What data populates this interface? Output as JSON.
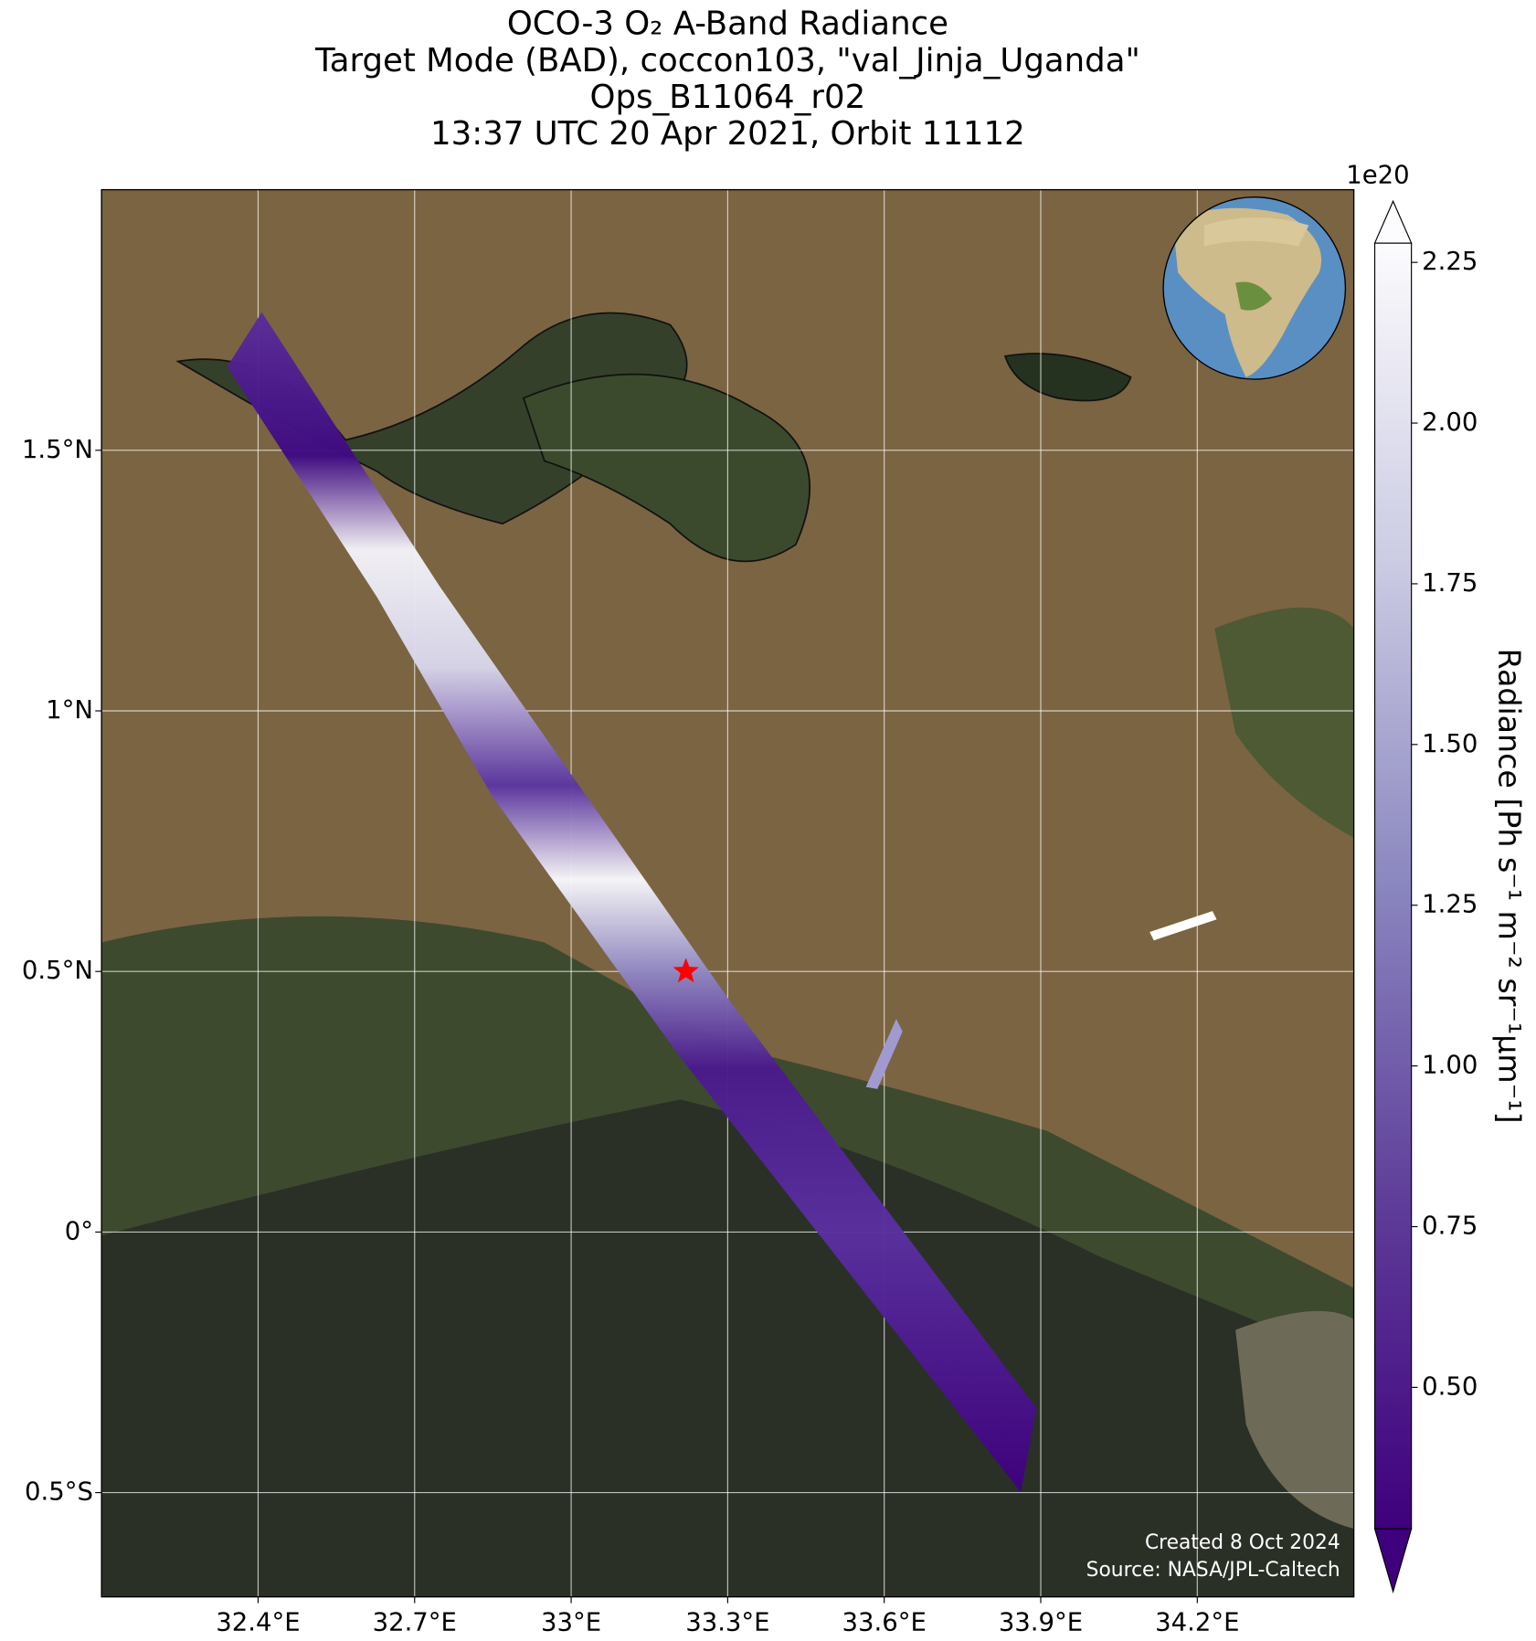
{
  "title": [
    "OCO-3 O₂ A-Band Radiance",
    "Target Mode (BAD), coccon103, \"val_Jinja_Uganda\"",
    "Ops_B11064_r02",
    "13:37 UTC 20 Apr 2021, Orbit 11112"
  ],
  "map": {
    "xlim": [
      32.1,
      34.5
    ],
    "ylim": [
      -0.7,
      2.0
    ],
    "xticks": [
      {
        "value": 32.4,
        "label": "32.4°E"
      },
      {
        "value": 32.7,
        "label": "32.7°E"
      },
      {
        "value": 33.0,
        "label": "33°E"
      },
      {
        "value": 33.3,
        "label": "33.3°E"
      },
      {
        "value": 33.6,
        "label": "33.6°E"
      },
      {
        "value": 33.9,
        "label": "33.9°E"
      },
      {
        "value": 34.2,
        "label": "34.2°E"
      }
    ],
    "yticks": [
      {
        "value": -0.5,
        "label": "0.5°S"
      },
      {
        "value": 0,
        "label": "0°"
      },
      {
        "value": 0.5,
        "label": "0.5°N"
      },
      {
        "value": 1.0,
        "label": "1°N"
      },
      {
        "value": 1.5,
        "label": "1.5°N"
      }
    ],
    "grid": true,
    "target": {
      "lon": 33.22,
      "lat": 0.5,
      "color": "#ff0000"
    }
  },
  "colorbar": {
    "label": "Radiance [Ph s⁻¹ m⁻² sr⁻¹μm⁻¹]",
    "scale_label": "1e20",
    "lim": [
      0.28,
      2.28
    ],
    "ticks": [
      {
        "value": 0.5,
        "label": "0.50"
      },
      0.75,
      {
        "value": 1.0,
        "label": "1.00"
      },
      1.25,
      {
        "value": 1.5,
        "label": "1.50"
      },
      1.75,
      {
        "value": 2.0,
        "label": "2.00"
      },
      2.25
    ]
  },
  "credits": [
    "Created 8 Oct 2024",
    "Source: NASA/JPL-Caltech"
  ]
}
